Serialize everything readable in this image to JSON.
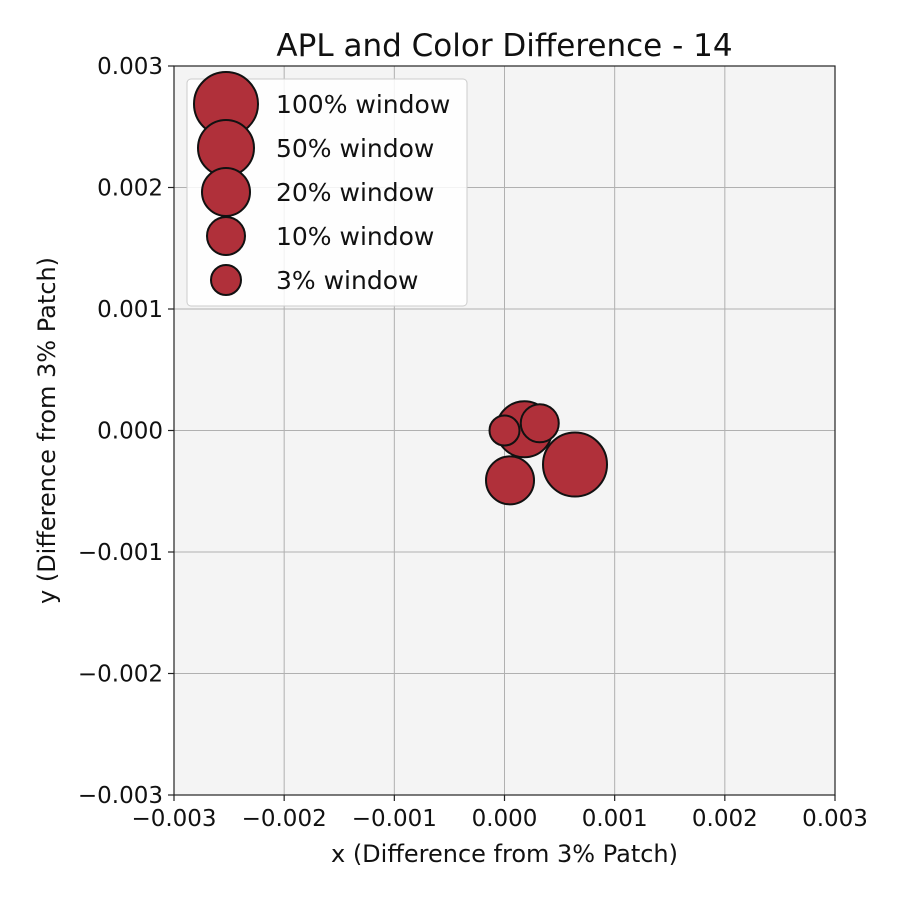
{
  "chart_data": {
    "type": "scatter",
    "title": "APL and Color Difference - 14",
    "xlabel": "x (Difference from 3% Patch)",
    "ylabel": "y (Difference from 3% Patch)",
    "xlim": [
      -0.003,
      0.003
    ],
    "ylim": [
      -0.003,
      0.003
    ],
    "xticks": [
      -0.003,
      -0.002,
      -0.001,
      0.0,
      0.001,
      0.002,
      0.003
    ],
    "yticks": [
      -0.003,
      -0.002,
      -0.001,
      0.0,
      0.001,
      0.002,
      0.003
    ],
    "xtick_labels": [
      "−0.003",
      "−0.002",
      "−0.001",
      "0.000",
      "0.001",
      "0.002",
      "0.003"
    ],
    "ytick_labels": [
      "−0.003",
      "−0.002",
      "−0.001",
      "0.000",
      "0.001",
      "0.002",
      "0.003"
    ],
    "grid": true,
    "legend_position": "top-left",
    "marker_color": "#b0303a",
    "marker_edge_color": "#111111",
    "background_color": "#f4f4f4",
    "series": [
      {
        "name": "100% window",
        "x": 0.00064,
        "y": -0.00028,
        "size_rank": 5
      },
      {
        "name": "50% window",
        "x": 0.00018,
        "y": 1e-05,
        "size_rank": 4
      },
      {
        "name": "20% window",
        "x": 5e-05,
        "y": -0.00041,
        "size_rank": 3
      },
      {
        "name": "10% window",
        "x": 0.00032,
        "y": 6e-05,
        "size_rank": 2
      },
      {
        "name": "3% window",
        "x": 0.0,
        "y": 0.0,
        "size_rank": 1
      }
    ]
  }
}
